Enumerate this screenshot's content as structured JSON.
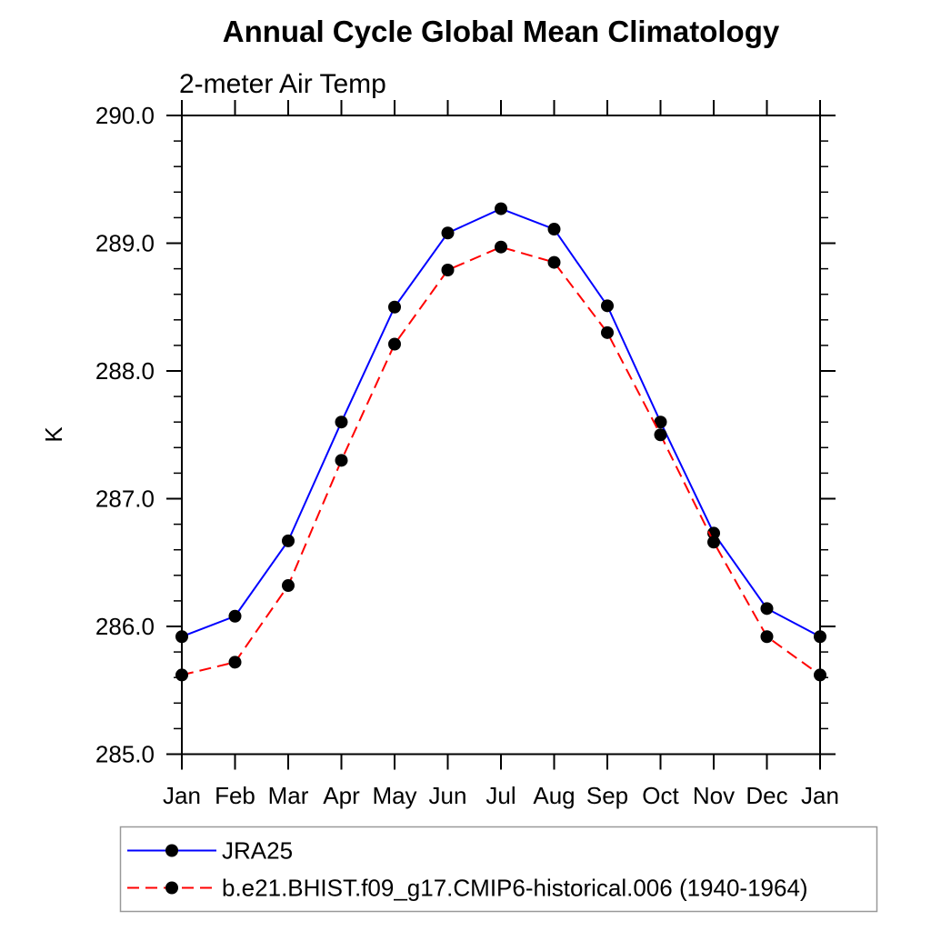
{
  "title": "Annual Cycle Global Mean Climatology",
  "subtitle": "2-meter Air Temp",
  "colors": {
    "background": "#ffffff",
    "axis": "#000000",
    "text": "#000000",
    "marker": "#000000",
    "series1_line": "#0000ff",
    "series2_line": "#ff0000",
    "legend_border": "#999999"
  },
  "chart_data": {
    "type": "line",
    "title": "Annual Cycle Global Mean Climatology",
    "subtitle": "2-meter Air Temp",
    "xlabel": "",
    "ylabel": "K",
    "categories": [
      "Jan",
      "Feb",
      "Mar",
      "Apr",
      "May",
      "Jun",
      "Jul",
      "Aug",
      "Sep",
      "Oct",
      "Nov",
      "Dec",
      "Jan"
    ],
    "series": [
      {
        "name": "JRA25",
        "color": "#0000ff",
        "line_style": "solid",
        "marker": "filled-circle",
        "marker_color": "#000000",
        "values": [
          285.92,
          286.08,
          286.67,
          287.6,
          288.5,
          289.08,
          289.27,
          289.11,
          288.51,
          287.6,
          286.73,
          286.14,
          285.92
        ]
      },
      {
        "name": "b.e21.BHIST.f09_g17.CMIP6-historical.006 (1940-1964)",
        "color": "#ff0000",
        "line_style": "dashed",
        "marker": "filled-circle",
        "marker_color": "#000000",
        "values": [
          285.62,
          285.72,
          286.32,
          287.3,
          288.21,
          288.79,
          288.97,
          288.85,
          288.3,
          287.5,
          286.66,
          285.92,
          285.62
        ]
      }
    ],
    "ylim": [
      285.0,
      290.0
    ],
    "ytick_major_interval": 1.0,
    "ytick_minor_interval": 0.2,
    "ytick_labels": [
      "285.0",
      "286.0",
      "287.0",
      "288.0",
      "289.0",
      "290.0"
    ],
    "grid": false,
    "legend_position": "below-left"
  },
  "legend": {
    "items": [
      {
        "label": "JRA25"
      },
      {
        "label": "b.e21.BHIST.f09_g17.CMIP6-historical.006 (1940-1964)"
      }
    ]
  }
}
